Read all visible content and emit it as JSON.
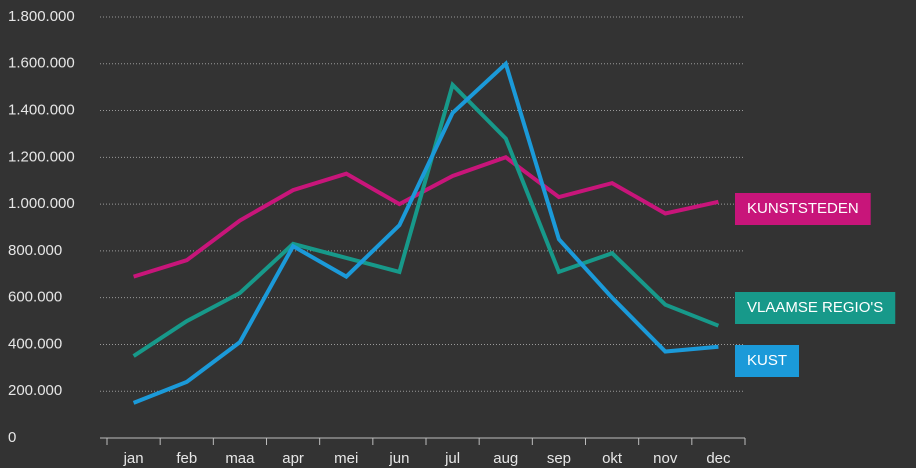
{
  "chart_data": {
    "type": "line",
    "categories": [
      "jan",
      "feb",
      "maa",
      "apr",
      "mei",
      "jun",
      "jul",
      "aug",
      "sep",
      "okt",
      "nov",
      "dec"
    ],
    "series": [
      {
        "name": "KUNSTSTEDEN",
        "color": "#c8157a",
        "values": [
          690000,
          760000,
          930000,
          1060000,
          1130000,
          1000000,
          1120000,
          1200000,
          1030000,
          1090000,
          960000,
          1010000
        ]
      },
      {
        "name": "VLAAMSE REGIO'S",
        "color": "#17998a",
        "values": [
          350000,
          500000,
          620000,
          830000,
          770000,
          710000,
          1510000,
          1280000,
          710000,
          790000,
          570000,
          480000
        ]
      },
      {
        "name": "KUST",
        "color": "#1b9ad9",
        "values": [
          150000,
          240000,
          410000,
          820000,
          690000,
          910000,
          1390000,
          1600000,
          850000,
          600000,
          370000,
          390000
        ]
      }
    ],
    "ylim": [
      0,
      1800000
    ],
    "yticks": [
      0,
      {
        "value": 200000,
        "label": "200.000"
      },
      {
        "value": 400000,
        "label": "400.000"
      },
      {
        "value": 600000,
        "label": "600.000"
      },
      {
        "value": 800000,
        "label": "800.000"
      },
      {
        "value": 1000000,
        "label": "1.000.000"
      },
      {
        "value": 1200000,
        "label": "1.200.000"
      },
      {
        "value": 1400000,
        "label": "1.400.000"
      },
      {
        "value": 1600000,
        "label": "1.600.000"
      },
      {
        "value": 1800000,
        "label": "1.800.000"
      }
    ],
    "grid": true
  }
}
